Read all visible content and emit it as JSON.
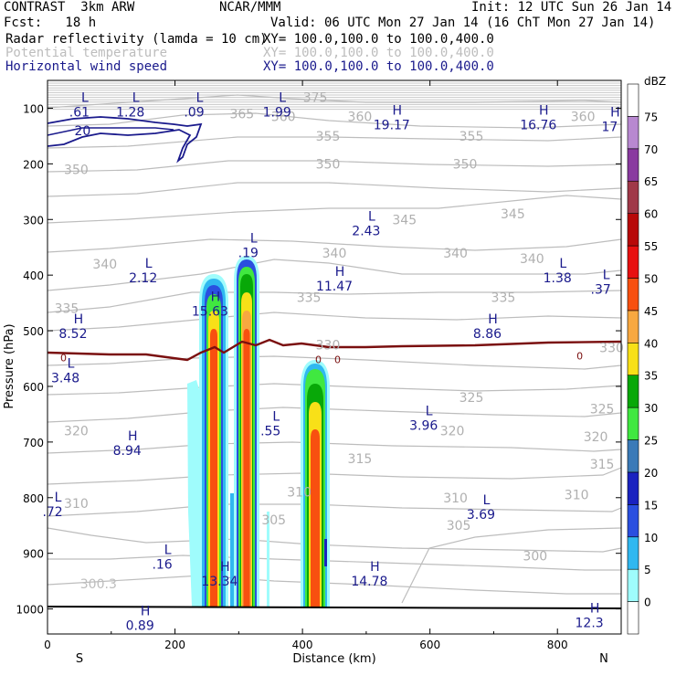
{
  "header": {
    "model": "CONTRAST  3km ARW",
    "center": "NCAR/MMM",
    "init": "Init: 12 UTC Sun 26 Jan 14",
    "fcst": "Fcst:   18 h",
    "valid": "Valid: 06 UTC Mon 27 Jan 14 (16 ChT Mon 27 Jan 14)",
    "fields": [
      {
        "name": "Radar reflectivity (lamda = 10 cm)",
        "xy": "XY= 100.0,100.0 to 100.0,400.0",
        "color": "#000000"
      },
      {
        "name": "Potential temperature",
        "xy": "XY= 100.0,100.0 to 100.0,400.0",
        "color": "#bdbdbd"
      },
      {
        "name": "Horizontal wind speed",
        "xy": "XY= 100.0,100.0 to 100.0,400.0",
        "color": "#1a1a8c"
      }
    ]
  },
  "chart_data": {
    "type": "heatmap",
    "xlabel": "Distance (km)",
    "ylabel": "Pressure (hPa)",
    "xlim": [
      0,
      900
    ],
    "ylim": [
      1045,
      50
    ],
    "x_ticks": [
      0,
      200,
      400,
      600,
      800
    ],
    "y_ticks": [
      100,
      200,
      300,
      400,
      500,
      600,
      700,
      800,
      900,
      1000
    ],
    "x_end_labels": {
      "left": "S",
      "right": "N"
    },
    "colorbar": {
      "unit": "dBZ",
      "levels": [
        0,
        5,
        10,
        15,
        20,
        25,
        30,
        35,
        40,
        45,
        50,
        55,
        60,
        65,
        70,
        75
      ],
      "colors": [
        "#ffffff",
        "#9ffcfc",
        "#30b8f0",
        "#2a4fe0",
        "#1a22c0",
        "#3a7ab8",
        "#40e840",
        "#08a808",
        "#f8e018",
        "#f8a840",
        "#f85010",
        "#e81010",
        "#b80808",
        "#a03848",
        "#8a3aa0",
        "#b888d0",
        "#ffffff"
      ]
    },
    "theta_labels": [
      {
        "text": "375",
        "x": 420,
        "p": 80
      },
      {
        "text": "365",
        "x": 305,
        "p": 110
      },
      {
        "text": "360",
        "x": 370,
        "p": 115
      },
      {
        "text": "360",
        "x": 490,
        "p": 115
      },
      {
        "text": "360",
        "x": 840,
        "p": 115
      },
      {
        "text": "355",
        "x": 440,
        "p": 150
      },
      {
        "text": "355",
        "x": 665,
        "p": 150
      },
      {
        "text": "350",
        "x": 45,
        "p": 210
      },
      {
        "text": "350",
        "x": 440,
        "p": 200
      },
      {
        "text": "350",
        "x": 655,
        "p": 200
      },
      {
        "text": "345",
        "x": 560,
        "p": 300
      },
      {
        "text": "345",
        "x": 730,
        "p": 290
      },
      {
        "text": "340",
        "x": 90,
        "p": 380
      },
      {
        "text": "340",
        "x": 450,
        "p": 360
      },
      {
        "text": "340",
        "x": 640,
        "p": 360
      },
      {
        "text": "340",
        "x": 760,
        "p": 370
      },
      {
        "text": "335",
        "x": 30,
        "p": 460
      },
      {
        "text": "335",
        "x": 410,
        "p": 440
      },
      {
        "text": "335",
        "x": 715,
        "p": 440
      },
      {
        "text": "330",
        "x": 440,
        "p": 525
      },
      {
        "text": "330",
        "x": 885,
        "p": 530
      },
      {
        "text": "325",
        "x": 665,
        "p": 620
      },
      {
        "text": "325",
        "x": 870,
        "p": 640
      },
      {
        "text": "320",
        "x": 45,
        "p": 680
      },
      {
        "text": "320",
        "x": 635,
        "p": 680
      },
      {
        "text": "320",
        "x": 860,
        "p": 690
      },
      {
        "text": "315",
        "x": 490,
        "p": 730
      },
      {
        "text": "315",
        "x": 870,
        "p": 740
      },
      {
        "text": "310",
        "x": 395,
        "p": 790
      },
      {
        "text": "310",
        "x": 640,
        "p": 800
      },
      {
        "text": "310",
        "x": 830,
        "p": 795
      },
      {
        "text": "310",
        "x": 45,
        "p": 810
      },
      {
        "text": "305",
        "x": 355,
        "p": 840
      },
      {
        "text": "305",
        "x": 645,
        "p": 850
      },
      {
        "text": "300",
        "x": 765,
        "p": 905
      }
    ],
    "wind_labels": [
      {
        "text": "20",
        "x": 55,
        "p": 140
      }
    ],
    "extrema": [
      {
        "type": "L",
        "value": ".61",
        "x": 50,
        "p": 92
      },
      {
        "type": "L",
        "value": "1.28",
        "x": 130,
        "p": 92
      },
      {
        "type": "L",
        "value": ".09",
        "x": 230,
        "p": 92
      },
      {
        "type": "L",
        "value": "1.99",
        "x": 360,
        "p": 92
      },
      {
        "type": "H",
        "value": "19.17",
        "x": 540,
        "p": 115
      },
      {
        "type": "H",
        "value": "16.76",
        "x": 770,
        "p": 115
      },
      {
        "type": "H",
        "value": "17",
        "x": 882,
        "p": 118
      },
      {
        "type": "L",
        "value": "2.43",
        "x": 500,
        "p": 305
      },
      {
        "type": "L",
        "value": ".19",
        "x": 315,
        "p": 345
      },
      {
        "type": "L",
        "value": "2.12",
        "x": 150,
        "p": 390
      },
      {
        "type": "H",
        "value": "11.47",
        "x": 450,
        "p": 405
      },
      {
        "type": "L",
        "value": "1.38",
        "x": 800,
        "p": 390
      },
      {
        "type": "L",
        "value": ".37",
        "x": 868,
        "p": 410
      },
      {
        "type": "H",
        "value": "15.63",
        "x": 255,
        "p": 450
      },
      {
        "type": "H",
        "value": "8.52",
        "x": 40,
        "p": 490
      },
      {
        "type": "H",
        "value": "8.86",
        "x": 690,
        "p": 490
      },
      {
        "type": "L",
        "value": "3.48",
        "x": 28,
        "p": 570
      },
      {
        "type": "L",
        "value": "3.96",
        "x": 590,
        "p": 655
      },
      {
        "type": "L",
        "value": ".55",
        "x": 350,
        "p": 665
      },
      {
        "type": "H",
        "value": "8.94",
        "x": 125,
        "p": 700
      },
      {
        "type": "L",
        "value": ".72",
        "x": 8,
        "p": 810
      },
      {
        "type": "L",
        "value": "3.69",
        "x": 680,
        "p": 815
      },
      {
        "type": "L",
        "value": ".16",
        "x": 180,
        "p": 905
      },
      {
        "type": "H",
        "value": "13.34",
        "x": 270,
        "p": 935
      },
      {
        "type": "H",
        "value": "14.78",
        "x": 505,
        "p": 935
      },
      {
        "type": "H",
        "value": "12.3",
        "x": 850,
        "p": 1010
      },
      {
        "type": "H",
        "value": "0.89",
        "x": 145,
        "p": 1015
      }
    ],
    "extra_text": [
      {
        "text": "300.3",
        "x": 80,
        "p": 955,
        "color": "#bdbdbd"
      }
    ],
    "zero_labels": [
      {
        "text": "0",
        "x": 25,
        "p": 548
      },
      {
        "text": "0",
        "x": 425,
        "p": 552
      },
      {
        "text": "0",
        "x": 455,
        "p": 552
      },
      {
        "text": "0",
        "x": 835,
        "p": 545
      }
    ]
  }
}
